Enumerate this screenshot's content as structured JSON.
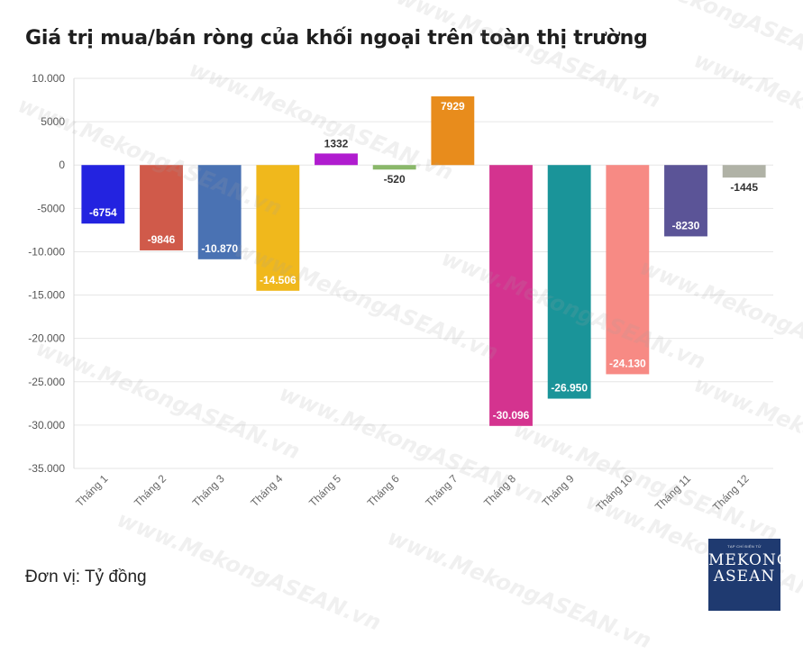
{
  "title": "Giá trị mua/bán ròng của khối ngoại trên toàn thị trường",
  "unit_note": "Đơn vị: Tỷ đồng",
  "logo": {
    "line1": "MEKONG",
    "line2": "ASEAN",
    "subtitle": "TẠP CHÍ ĐIỆN TỬ"
  },
  "watermark_text": "www.MekongASEAN.vn",
  "chart_data": {
    "type": "bar",
    "title": "Giá trị mua/bán ròng của khối ngoại trên toàn thị trường",
    "xlabel": "",
    "ylabel": "",
    "ylim": [
      -35000,
      10000
    ],
    "grid": true,
    "categories": [
      "Tháng 1",
      "Tháng 2",
      "Tháng 3",
      "Tháng 4",
      "Tháng 5",
      "Tháng 6",
      "Tháng 7",
      "Tháng 8",
      "Tháng 9",
      "Tháng 10",
      "Tháng 11",
      "Tháng 12"
    ],
    "values": [
      -6754,
      -9846,
      -10870,
      -14506,
      1332,
      -520,
      7929,
      -30096,
      -26950,
      -24130,
      -8230,
      -1445
    ],
    "data_labels": [
      "-6754",
      "-9846",
      "-10.870",
      "-14.506",
      "1332",
      "-520",
      "7929",
      "-30.096",
      "-26.950",
      "-24.130",
      "-8230",
      "-1445"
    ],
    "colors": [
      "#2323e0",
      "#d05a4a",
      "#4a72b3",
      "#f0b81c",
      "#b01ccf",
      "#8ab86a",
      "#e88c1c",
      "#d4338f",
      "#1a9499",
      "#f78a84",
      "#5b5497",
      "#b0b2a6"
    ],
    "label_inside": [
      true,
      true,
      true,
      true,
      false,
      false,
      true,
      true,
      true,
      true,
      true,
      false
    ],
    "yticks": [
      10000,
      5000,
      0,
      -5000,
      -10000,
      -15000,
      -20000,
      -25000,
      -30000,
      -35000
    ],
    "ytick_labels": [
      "10.000",
      "5000",
      "0",
      "-5000",
      "-10.000",
      "-15.000",
      "-20.000",
      "-25.000",
      "-30.000",
      "-35.000"
    ]
  }
}
